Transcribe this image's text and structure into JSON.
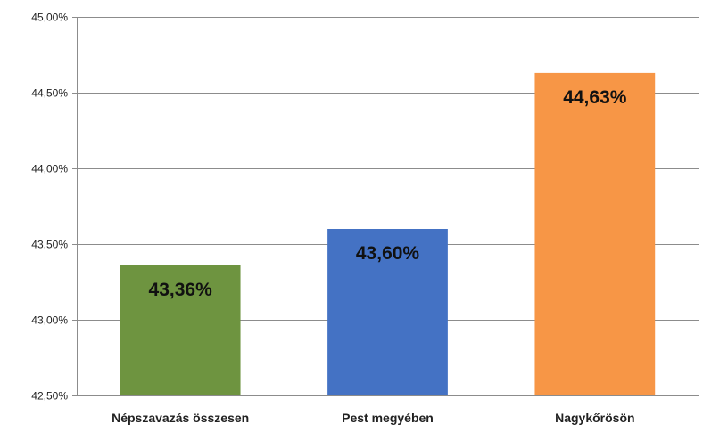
{
  "chart_data": {
    "type": "bar",
    "categories": [
      "Népszavazás összesen",
      "Pest megyében",
      "Nagykőrösön"
    ],
    "values": [
      43.36,
      43.6,
      44.63
    ],
    "data_labels": [
      "43,36%",
      "43,60%",
      "44,63%"
    ],
    "bar_colors": [
      "#6e9440",
      "#4472c4",
      "#f79646"
    ],
    "ylim": [
      42.5,
      45.0
    ],
    "yticks": [
      42.5,
      43.0,
      43.5,
      44.0,
      44.5,
      45.0
    ],
    "ytick_labels": [
      "42,50%",
      "43,00%",
      "43,50%",
      "44,00%",
      "44,50%",
      "45,00%"
    ],
    "grid": true,
    "legend": "none"
  }
}
